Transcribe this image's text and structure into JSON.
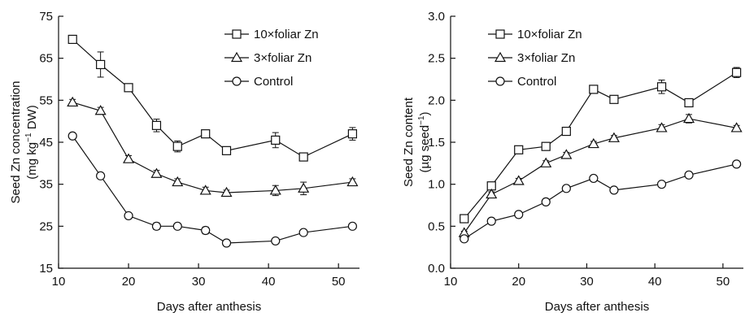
{
  "chart_data": [
    {
      "type": "line",
      "xlabel": "Days after anthesis",
      "ylabel": "Seed Zn concentration",
      "ylabel_unit_pre": "(mg kg",
      "ylabel_unit_sup": "−1",
      "ylabel_unit_post": " DW)",
      "xlim": [
        10,
        53
      ],
      "ylim": [
        15,
        75
      ],
      "xticks": [
        10,
        20,
        30,
        40,
        50
      ],
      "yticks": [
        15,
        25,
        35,
        45,
        55,
        65,
        75
      ],
      "grid": false,
      "legend_position": "top-right",
      "series": [
        {
          "name": "10×foliar Zn",
          "marker": "square",
          "x": [
            12,
            16,
            20,
            24,
            27,
            31,
            34,
            41,
            45,
            52
          ],
          "y": [
            69.5,
            63.5,
            58,
            49,
            44,
            47,
            43,
            45.5,
            41.5,
            47
          ],
          "err": [
            0.7,
            3,
            0.8,
            1.5,
            1.3,
            0.8,
            0.6,
            1.8,
            0.5,
            1.5
          ]
        },
        {
          "name": "3×foliar Zn",
          "marker": "triangle",
          "x": [
            12,
            16,
            20,
            24,
            27,
            31,
            34,
            41,
            45,
            52
          ],
          "y": [
            54.5,
            52.5,
            41,
            37.5,
            35.5,
            33.5,
            33,
            33.5,
            34,
            35.5
          ],
          "err": [
            0.7,
            0.8,
            0.8,
            0.8,
            0.8,
            0.8,
            0.6,
            1.2,
            1.5,
            0.8
          ]
        },
        {
          "name": "Control",
          "marker": "circle",
          "x": [
            12,
            16,
            20,
            24,
            27,
            31,
            34,
            41,
            45,
            52
          ],
          "y": [
            46.5,
            37,
            27.5,
            25,
            25,
            24,
            21,
            21.5,
            23.5,
            25
          ],
          "err": [
            0.5,
            0.5,
            0.5,
            0.8,
            0.5,
            0.8,
            0.5,
            0.5,
            0.5,
            0.5
          ]
        }
      ]
    },
    {
      "type": "line",
      "xlabel": "Days after anthesis",
      "ylabel": "Seed Zn content",
      "ylabel_unit_pre": "(µg seed",
      "ylabel_unit_sup": "−1",
      "ylabel_unit_post": ")",
      "xlim": [
        10,
        53
      ],
      "ylim": [
        0,
        3
      ],
      "xticks": [
        10,
        20,
        30,
        40,
        50
      ],
      "yticks": [
        "0.0",
        "0.5",
        "1.0",
        "1.5",
        "2.0",
        "2.5",
        "3.0"
      ],
      "grid": false,
      "legend_position": "top-left",
      "series": [
        {
          "name": "10×foliar Zn",
          "marker": "square",
          "x": [
            12,
            16,
            20,
            24,
            27,
            31,
            34,
            41,
            45,
            52
          ],
          "y": [
            0.59,
            0.98,
            1.41,
            1.45,
            1.63,
            2.13,
            2.01,
            2.16,
            1.97,
            2.33
          ],
          "err": [
            0.02,
            0.03,
            0.03,
            0.03,
            0.03,
            0.04,
            0.03,
            0.08,
            0.04,
            0.06
          ]
        },
        {
          "name": "3×foliar Zn",
          "marker": "triangle",
          "x": [
            12,
            16,
            20,
            24,
            27,
            31,
            34,
            41,
            45,
            52
          ],
          "y": [
            0.42,
            0.88,
            1.04,
            1.25,
            1.35,
            1.48,
            1.55,
            1.67,
            1.78,
            1.67
          ],
          "err": [
            0.02,
            0.03,
            0.03,
            0.03,
            0.03,
            0.03,
            0.03,
            0.04,
            0.05,
            0.03
          ]
        },
        {
          "name": "Control",
          "marker": "circle",
          "x": [
            12,
            16,
            20,
            24,
            27,
            31,
            34,
            41,
            45,
            52
          ],
          "y": [
            0.35,
            0.56,
            0.64,
            0.79,
            0.95,
            1.07,
            0.93,
            1.0,
            1.11,
            1.24
          ],
          "err": [
            0.02,
            0.02,
            0.02,
            0.02,
            0.02,
            0.03,
            0.02,
            0.02,
            0.02,
            0.02
          ]
        }
      ]
    }
  ]
}
